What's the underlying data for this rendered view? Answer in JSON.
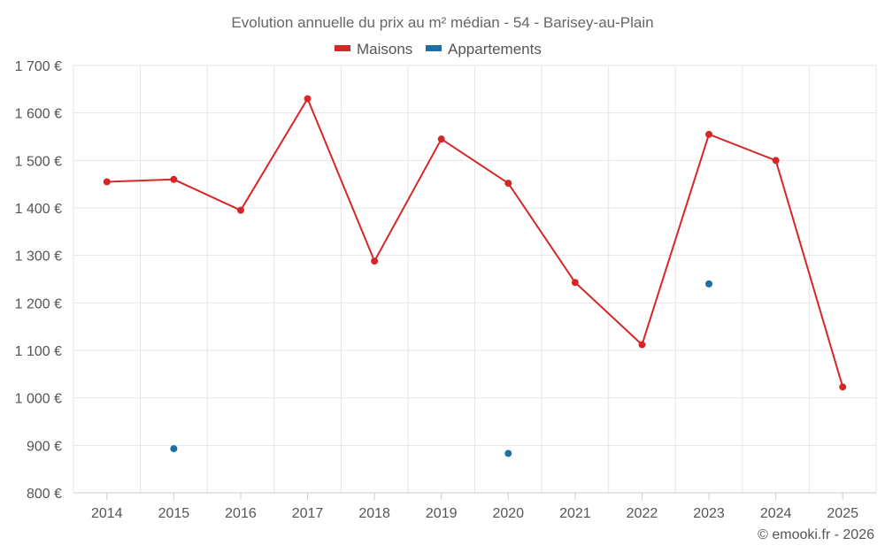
{
  "chart_data": {
    "type": "line",
    "title": "Evolution annuelle du prix au m² médian - 54 - Barisey-au-Plain",
    "categories": [
      "2014",
      "2015",
      "2016",
      "2017",
      "2018",
      "2019",
      "2020",
      "2021",
      "2022",
      "2023",
      "2024",
      "2025"
    ],
    "series": [
      {
        "name": "Maisons",
        "color": "#d62728",
        "style": "line",
        "values": [
          1455,
          1460,
          1395,
          1630,
          1288,
          1545,
          1452,
          1243,
          1112,
          1555,
          1500,
          1023
        ]
      },
      {
        "name": "Appartements",
        "color": "#1f6fa3",
        "style": "markers",
        "values": [
          null,
          893,
          null,
          null,
          null,
          null,
          883,
          null,
          null,
          1240,
          null,
          null
        ]
      }
    ],
    "ylim": [
      800,
      1700
    ],
    "yticks": [
      800,
      900,
      1000,
      1100,
      1200,
      1300,
      1400,
      1500,
      1600,
      1700
    ],
    "ytick_labels": [
      "800 €",
      "900 €",
      "1 000 €",
      "1 100 €",
      "1 200 €",
      "1 300 €",
      "1 400 €",
      "1 500 €",
      "1 600 €",
      "1 700 €"
    ],
    "xlabel": "",
    "ylabel": "",
    "legend": "top-center",
    "grid": true
  },
  "credit": "© emooki.fr - 2026"
}
